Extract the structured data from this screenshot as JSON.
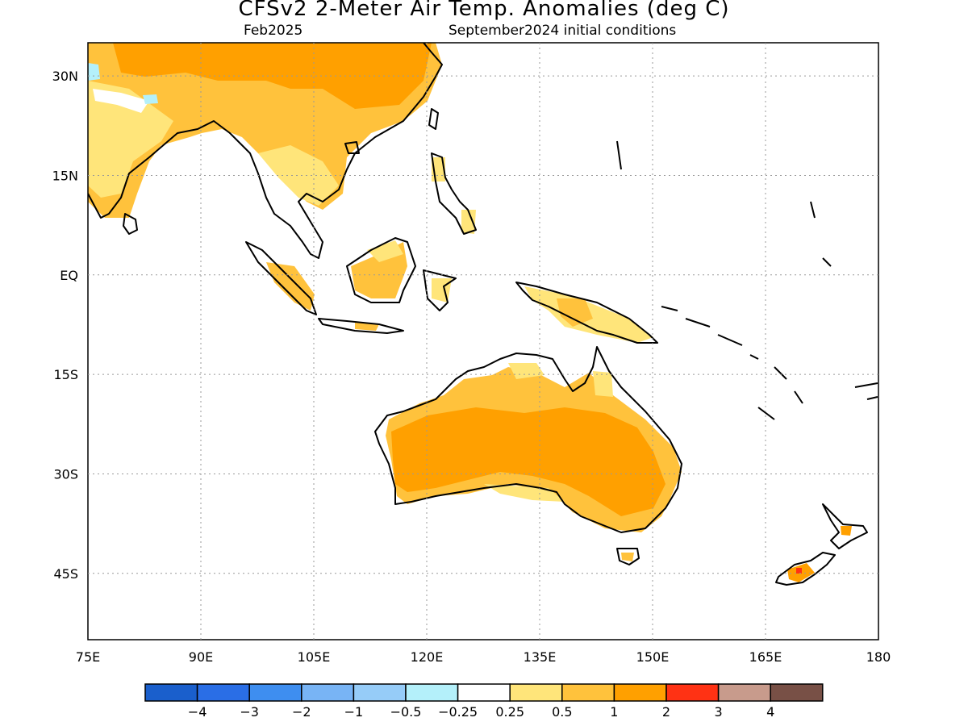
{
  "title": "CFSv2 2-Meter Air Temp. Anomalies (deg C)",
  "subtitle_left": "Feb2025",
  "subtitle_right": "September2024 initial conditions",
  "axes": {
    "lon_ticks": [
      "75E",
      "90E",
      "105E",
      "120E",
      "135E",
      "150E",
      "165E",
      "180"
    ],
    "lat_ticks": [
      "30N",
      "15N",
      "EQ",
      "15S",
      "30S",
      "45S"
    ],
    "lon_range": [
      75,
      180
    ],
    "lat_range": [
      -55,
      35
    ],
    "grid": "dotted"
  },
  "colorbar": {
    "labels": [
      "-4",
      "-3",
      "-2",
      "-1",
      "-0.5",
      "-0.25",
      "0.25",
      "0.5",
      "1",
      "2",
      "3",
      "4"
    ],
    "colors": [
      "#1a5fcc",
      "#2a6ee6",
      "#3e8ef0",
      "#78b4f5",
      "#96ccf8",
      "#b4f0fa",
      "#ffffff",
      "#ffe57a",
      "#ffc23c",
      "#ffa000",
      "#ff3214",
      "#c89b8c",
      "#785046"
    ]
  },
  "map_colors": {
    "coastline": "#000000",
    "anomaly_0_25_to_0_5": "#ffe57a",
    "anomaly_0_5_to_1": "#ffc23c",
    "anomaly_1_to_2": "#ffa000",
    "anomaly_2_to_3": "#ff3214",
    "anomaly_neg_0_25_to_neg_0_5": "#b4f0fa"
  }
}
